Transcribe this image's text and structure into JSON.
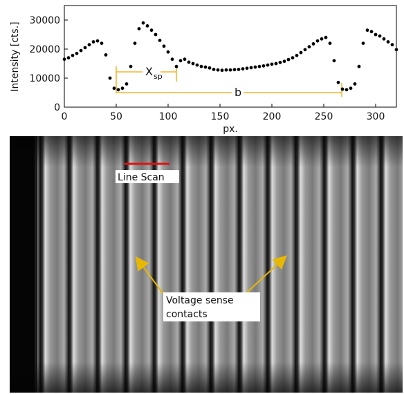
{
  "chart_data": {
    "type": "scatter",
    "xlabel": "px.",
    "ylabel": "Intensity [cts.]",
    "xlim": [
      0,
      320
    ],
    "ylim": [
      0,
      35000
    ],
    "xticks": [
      0,
      50,
      100,
      150,
      200,
      250,
      300
    ],
    "yticks": [
      0,
      10000,
      20000,
      30000
    ],
    "color": "#000000",
    "x": [
      0,
      4,
      8,
      12,
      16,
      20,
      24,
      28,
      32,
      36,
      40,
      44,
      48,
      52,
      56,
      60,
      64,
      68,
      72,
      76,
      80,
      84,
      88,
      92,
      96,
      100,
      104,
      108,
      112,
      116,
      120,
      124,
      128,
      132,
      136,
      140,
      144,
      148,
      152,
      156,
      160,
      164,
      168,
      172,
      176,
      180,
      184,
      188,
      192,
      196,
      200,
      204,
      208,
      212,
      216,
      220,
      224,
      228,
      232,
      236,
      240,
      244,
      248,
      252,
      256,
      260,
      264,
      268,
      272,
      276,
      280,
      284,
      288,
      292,
      296,
      300,
      304,
      308,
      312,
      316,
      320
    ],
    "values": [
      16500,
      17000,
      17800,
      18500,
      19500,
      20500,
      21500,
      22500,
      22800,
      22000,
      18000,
      10000,
      6500,
      6000,
      6500,
      8000,
      14000,
      22000,
      27000,
      29000,
      28000,
      26500,
      25000,
      23000,
      21000,
      19000,
      16500,
      14000,
      16000,
      16500,
      15500,
      15000,
      14500,
      14000,
      13800,
      13500,
      13000,
      12800,
      12700,
      12800,
      12800,
      12900,
      13000,
      13200,
      13400,
      13600,
      13800,
      14000,
      14200,
      14500,
      14800,
      15000,
      15400,
      15800,
      16400,
      17000,
      17800,
      18800,
      19800,
      20800,
      21800,
      22800,
      23500,
      24000,
      22000,
      16000,
      8500,
      6200,
      6000,
      6500,
      8000,
      14000,
      22000,
      26500,
      26000,
      25000,
      24500,
      23500,
      22500,
      21500,
      19800
    ],
    "annotations": [
      {
        "text": "X",
        "subscript": "sp"
      },
      {
        "text": "b"
      }
    ]
  },
  "image": {
    "labels": [
      "Line Scan",
      "Voltage sense",
      "contacts"
    ]
  }
}
